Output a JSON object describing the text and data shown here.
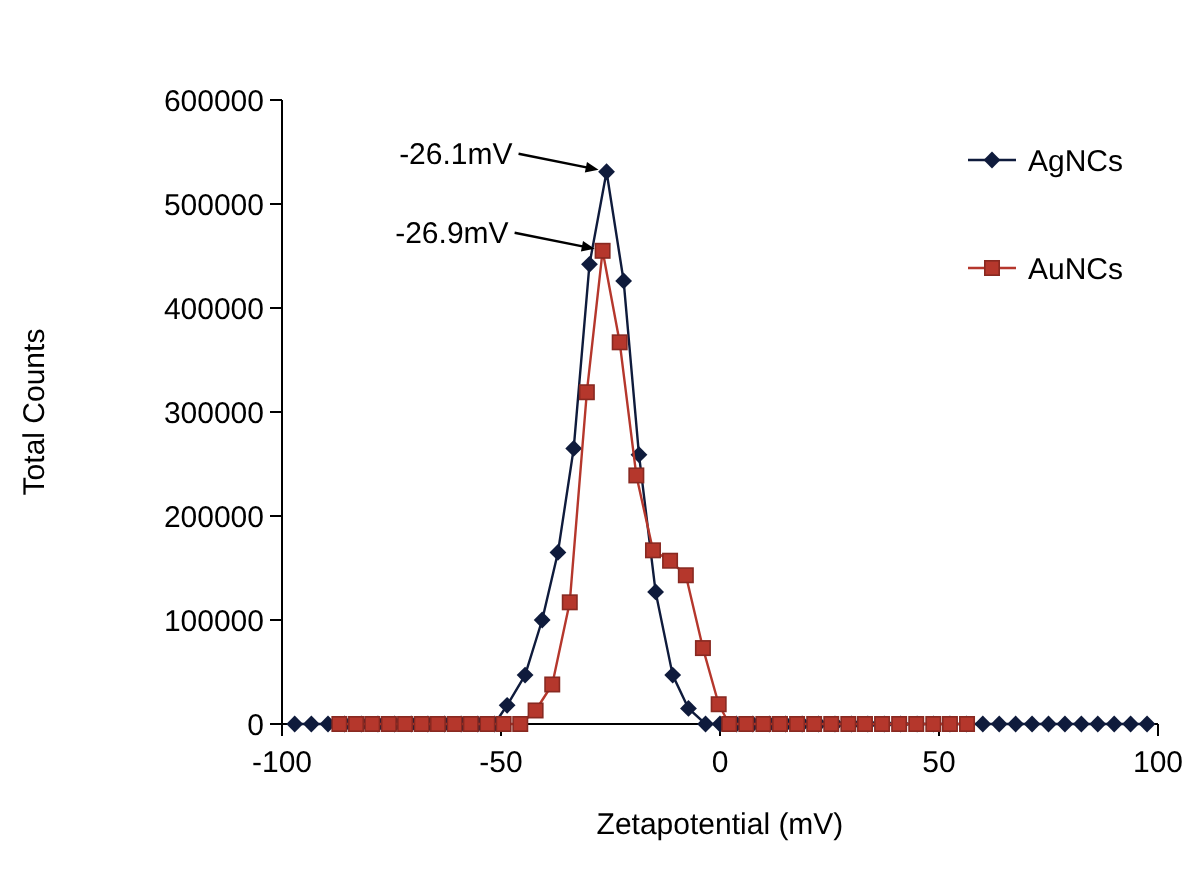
{
  "chart_data": {
    "type": "line",
    "xlabel": "Zetapotential (mV)",
    "ylabel": "Total Counts",
    "xlim": [
      -100,
      100
    ],
    "xticks": [
      -100,
      -50,
      0,
      50,
      100
    ],
    "ylim": [
      0,
      600000
    ],
    "yticks": [
      0,
      100000,
      200000,
      300000,
      400000,
      500000,
      600000
    ],
    "grid": false,
    "legend": "top right",
    "series": [
      {
        "name": "AgNCs",
        "color": "#0f1b3c",
        "marker": "diamond",
        "x": [
          -97.1,
          -93.3,
          -89.5,
          -85.7,
          -81.9,
          -78.1,
          -74.3,
          -70.5,
          -66.7,
          -62.9,
          -59.1,
          -55.3,
          -51.5,
          -48.6,
          -44.5,
          -40.6,
          -37.0,
          -33.4,
          -29.8,
          -25.9,
          -22.0,
          -18.5,
          -14.7,
          -10.8,
          -7.2,
          -3.3,
          0,
          3.75,
          7.5,
          11.25,
          15,
          18.75,
          22.5,
          26.25,
          30,
          33.75,
          37.5,
          41.25,
          45,
          48.75,
          52.5,
          56.25,
          60,
          63.75,
          67.5,
          71.25,
          75,
          78.75,
          82.5,
          86.25,
          90,
          93.75,
          97.5
        ],
        "values": [
          0,
          0,
          0,
          0,
          0,
          0,
          0,
          0,
          0,
          0,
          0,
          0,
          0,
          18000,
          47000,
          100000,
          165000,
          265000,
          442000,
          531000,
          426000,
          259000,
          127000,
          47000,
          15000,
          0,
          0,
          0,
          0,
          0,
          0,
          0,
          0,
          0,
          0,
          0,
          0,
          0,
          0,
          0,
          0,
          0,
          0,
          0,
          0,
          0,
          0,
          0,
          0,
          0,
          0,
          0,
          0
        ]
      },
      {
        "name": "AuNCs",
        "color": "#b5372c",
        "marker": "square",
        "x": [
          -86.9,
          -83.1,
          -79.4,
          -75.6,
          -71.9,
          -68.1,
          -64.4,
          -60.6,
          -56.9,
          -53.1,
          -49.4,
          -45.6,
          -42.1,
          -38.3,
          -34.3,
          -30.4,
          -26.8,
          -22.9,
          -19.1,
          -15.3,
          -11.4,
          -7.8,
          -3.9,
          -0.3,
          2.1,
          6.0,
          9.9,
          13.7,
          17.6,
          21.5,
          25.4,
          29.3,
          33.1,
          37.0,
          40.9,
          44.8,
          48.7,
          52.5,
          56.4
        ],
        "values": [
          0,
          0,
          0,
          0,
          0,
          0,
          0,
          0,
          0,
          0,
          0,
          0,
          13000,
          38000,
          117000,
          319000,
          455000,
          367000,
          239000,
          167000,
          157000,
          143000,
          73000,
          19000,
          0,
          0,
          0,
          0,
          0,
          0,
          0,
          0,
          0,
          0,
          0,
          0,
          0,
          0,
          0
        ]
      }
    ],
    "annotations": [
      {
        "text": "-26.1mV",
        "x": -25.9,
        "y": 531000
      },
      {
        "text": "-26.9mV",
        "x": -26.8,
        "y": 455000
      }
    ]
  }
}
